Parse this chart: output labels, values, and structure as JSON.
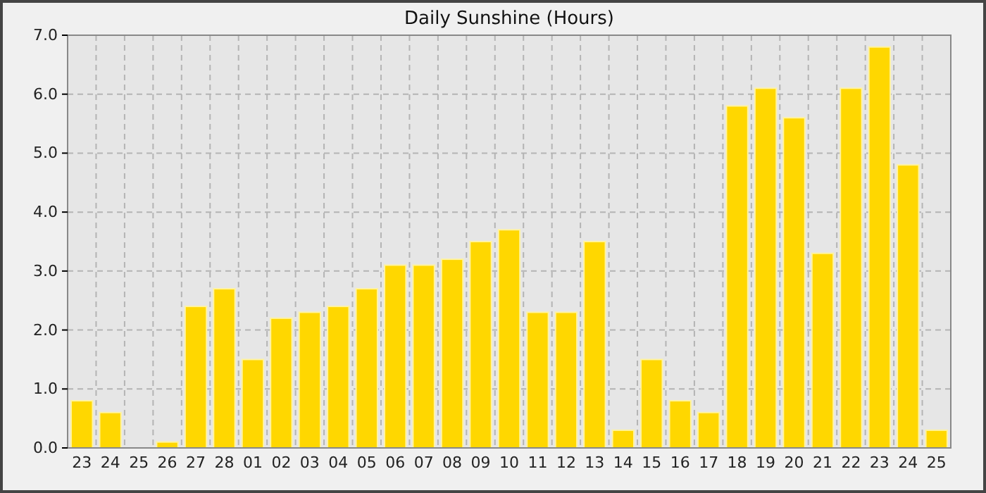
{
  "chart_data": {
    "type": "bar",
    "title": "Daily Sunshine (Hours)",
    "categories": [
      "23",
      "24",
      "25",
      "26",
      "27",
      "28",
      "01",
      "02",
      "03",
      "04",
      "05",
      "06",
      "07",
      "08",
      "09",
      "10",
      "11",
      "12",
      "13",
      "14",
      "15",
      "16",
      "17",
      "18",
      "19",
      "20",
      "21",
      "22",
      "23",
      "24",
      "25"
    ],
    "values": [
      0.8,
      0.6,
      0,
      0.1,
      2.4,
      2.7,
      1.5,
      2.2,
      2.3,
      2.4,
      2.7,
      3.1,
      3.1,
      3.2,
      3.5,
      3.7,
      2.3,
      2.3,
      3.5,
      0.3,
      1.5,
      0.8,
      0.6,
      5.8,
      6.1,
      5.6,
      3.3,
      6.1,
      6.8,
      4.8,
      0.3
    ],
    "color": "#ffd700",
    "ylim": [
      0,
      7
    ],
    "yticks": [
      {
        "value": 0,
        "label": "0.0"
      },
      {
        "value": 1,
        "label": "1.0"
      },
      {
        "value": 2,
        "label": "2.0"
      },
      {
        "value": 3,
        "label": "3.0"
      },
      {
        "value": 4,
        "label": "4.0"
      },
      {
        "value": 5,
        "label": "5.0"
      },
      {
        "value": 6,
        "label": "6.0"
      },
      {
        "value": 7,
        "label": "7.0"
      }
    ],
    "grid": true
  }
}
